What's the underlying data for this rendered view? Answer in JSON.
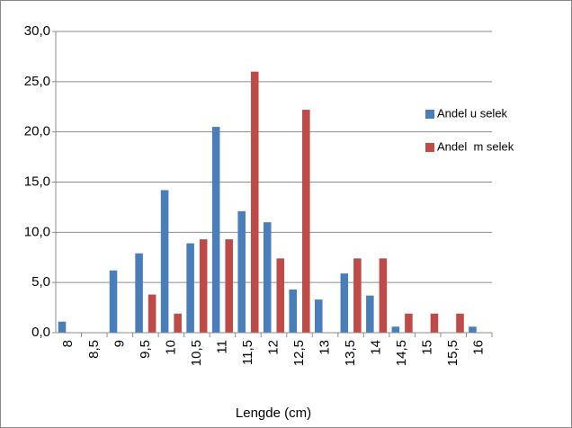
{
  "chart_data": {
    "type": "bar",
    "x_label": "Lengde (cm)",
    "categories": [
      "8",
      "8,5",
      "9",
      "9,5",
      "10",
      "10,5",
      "11",
      "11,5",
      "12",
      "12,5",
      "13",
      "13,5",
      "14",
      "14,5",
      "15",
      "15,5",
      "16"
    ],
    "series": [
      {
        "name": "Andel u selek",
        "color": "#4a7ebb",
        "values": [
          1.1,
          0,
          6.2,
          7.9,
          14.2,
          8.9,
          20.5,
          12.1,
          11.0,
          4.3,
          3.3,
          5.9,
          3.7,
          0.6,
          0,
          0,
          0.6
        ]
      },
      {
        "name": "Andel  m selek",
        "color": "#be4b48",
        "values": [
          0,
          0,
          0,
          3.8,
          1.9,
          9.3,
          9.3,
          26.0,
          7.4,
          22.2,
          0,
          7.4,
          7.4,
          1.9,
          1.9,
          1.9,
          0
        ]
      }
    ],
    "ylim": [
      0,
      30
    ],
    "yticks": [
      {
        "value": 0,
        "label": "0,0"
      },
      {
        "value": 5,
        "label": "5,0"
      },
      {
        "value": 10,
        "label": "10,0"
      },
      {
        "value": 15,
        "label": "15,0"
      },
      {
        "value": 20,
        "label": "20,0"
      },
      {
        "value": 25,
        "label": "25,0"
      },
      {
        "value": 30,
        "label": "30,0"
      }
    ],
    "grid": true,
    "legend": "right"
  }
}
